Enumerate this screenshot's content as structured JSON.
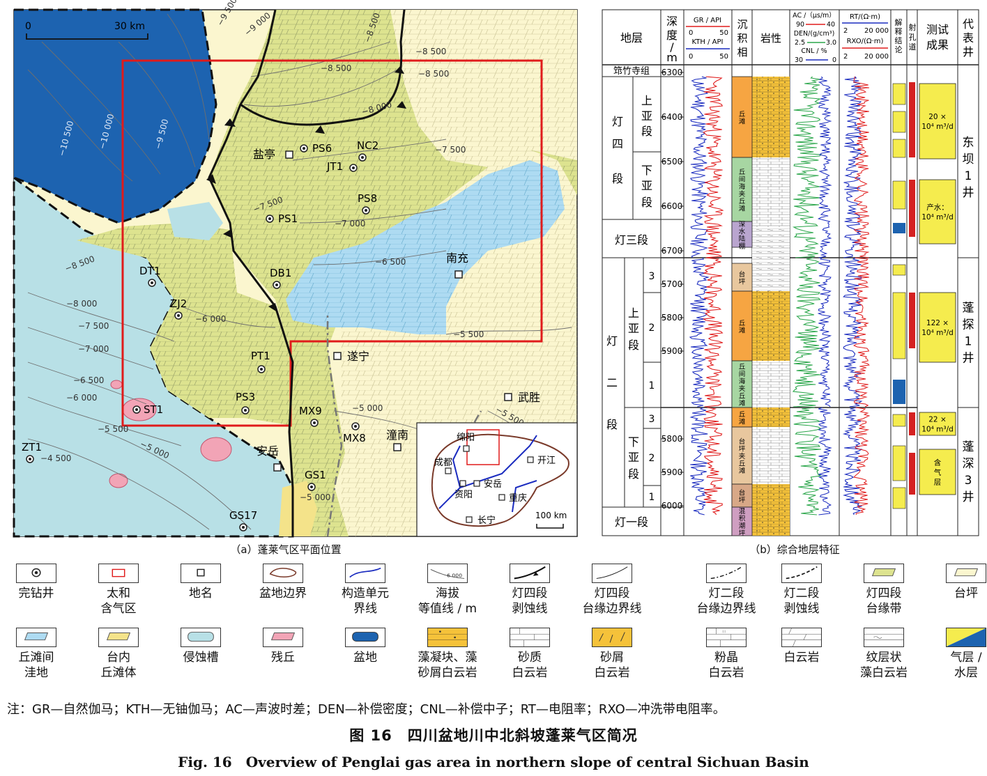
{
  "map": {
    "caption": "（a）蓬莱气区平面位置",
    "scale": {
      "zero": "0",
      "label": "30 km"
    },
    "wells": [
      {
        "name": "PS6"
      },
      {
        "name": "NC2"
      },
      {
        "name": "JT1"
      },
      {
        "name": "PS8"
      },
      {
        "name": "PS1"
      },
      {
        "name": "DT1"
      },
      {
        "name": "DB1"
      },
      {
        "name": "ZJ2"
      },
      {
        "name": "PT1"
      },
      {
        "name": "ST1"
      },
      {
        "name": "PS3"
      },
      {
        "name": "MX9"
      },
      {
        "name": "MX8"
      },
      {
        "name": "ZT1"
      },
      {
        "name": "GS1"
      },
      {
        "name": "GS17"
      }
    ],
    "places": [
      {
        "name": "盐亭"
      },
      {
        "name": "南充"
      },
      {
        "name": "遂宁"
      },
      {
        "name": "武胜"
      },
      {
        "name": "潼南"
      },
      {
        "name": "安岳"
      }
    ],
    "contours": [
      "−9 500",
      "−9 000",
      "−8 500",
      "−8 500",
      "−8 500",
      "−8 000",
      "−7 500",
      "−10 500",
      "−10 000",
      "−9 500",
      "−7 500",
      "−7 000",
      "−6 500",
      "−5 500",
      "−8 500",
      "−8 000",
      "−7 500",
      "−7 000",
      "−6 500",
      "−6 000",
      "−5 500",
      "−5 000",
      "−4 500",
      "−5 000",
      "−5 500",
      "−6 000",
      "−5 000",
      "−8 500"
    ],
    "inset": {
      "places": [
        {
          "name": "绵阳"
        },
        {
          "name": "成都"
        },
        {
          "name": "开江"
        },
        {
          "name": "资阳"
        },
        {
          "name": "安岳"
        },
        {
          "name": "重庆"
        },
        {
          "name": "长宁"
        }
      ],
      "scale": "100 km"
    }
  },
  "column": {
    "caption": "（b）综合地层特征",
    "headers": {
      "strata": "地层",
      "depth": [
        "深",
        "度",
        "/",
        "m"
      ],
      "gr_title": "GR / API",
      "gr_range": [
        "0",
        "50"
      ],
      "kth_title": "KTH / API",
      "kth_range": [
        "0",
        "50"
      ],
      "facies": [
        "沉",
        "积",
        "相"
      ],
      "lith": "岩性",
      "ac_title": "AC /（μs/m）",
      "ac_range": [
        "90",
        "40"
      ],
      "den_title": "DEN/(g/cm³)",
      "den_range": [
        "2.5",
        "3.0"
      ],
      "cnl_title": "CNL / %",
      "cnl_range": [
        "30",
        "0"
      ],
      "rt_title": "RT/(Ω·m)",
      "rt_range": [
        "2",
        "20 000"
      ],
      "rxo_title": "RXO/(Ω·m)",
      "rxo_range": [
        "2",
        "20 000"
      ],
      "interp": [
        "解",
        "释",
        "结",
        "论"
      ],
      "perf": [
        "射",
        "孔",
        "道"
      ],
      "test": [
        "测试",
        "成果"
      ],
      "rep": [
        "代",
        "表",
        "井"
      ]
    },
    "units": {
      "qzs": "筇竹寺组",
      "d4": [
        "灯",
        "四",
        "段"
      ],
      "upper": [
        "上",
        "亚",
        "段"
      ],
      "lower": [
        "下",
        "亚",
        "段"
      ],
      "d3": "灯三段",
      "d2": [
        "灯",
        "二",
        "段"
      ],
      "d1": "灯一段",
      "sub3": "3",
      "sub2": "2",
      "sub1": "1"
    },
    "depths_top": [
      "6300",
      "6400",
      "6500",
      "6600",
      "6700"
    ],
    "depths_mid": [
      "5700",
      "5800",
      "5900"
    ],
    "depths_bot": [
      "5800",
      "5900",
      "6000"
    ],
    "facies": [
      {
        "label": [
          "丘",
          "滩"
        ],
        "color": "#f6a542"
      },
      {
        "label": [
          "丘",
          "间",
          "海",
          "夹",
          "丘",
          "滩"
        ],
        "color": "#a7d6a2"
      },
      {
        "label": [
          "深",
          "水",
          "陆",
          "棚"
        ],
        "color": "#b9a5cf"
      },
      {
        "label": [
          "台",
          "坪"
        ],
        "color": "#e8c79e"
      },
      {
        "label": [
          "丘",
          "滩"
        ],
        "color": "#f6a542"
      },
      {
        "label": [
          "丘",
          "间",
          "海",
          "夹",
          "丘",
          "滩"
        ],
        "color": "#a7d6a2"
      },
      {
        "label": [
          "丘",
          "滩"
        ],
        "color": "#f6a542"
      },
      {
        "label": [
          "台",
          "坪",
          "夹",
          "丘",
          "滩"
        ],
        "color": "#e8c79e"
      },
      {
        "label": [
          "台",
          "坪"
        ],
        "color": "#d8a887"
      },
      {
        "label": [
          "混",
          "积",
          "潮",
          "坪"
        ],
        "color": "#cf9ec1"
      }
    ],
    "tests": [
      {
        "lines": [
          "20 ×",
          "10⁴ m³/d"
        ]
      },
      {
        "lines": [
          "产水：",
          "10⁴ m³/d"
        ]
      },
      {
        "lines": [
          "122 ×",
          "10⁴ m³/d"
        ]
      },
      {
        "lines": [
          "22 ×",
          "10⁴ m³/d"
        ]
      },
      {
        "lines": [
          "含",
          "气",
          "层"
        ]
      }
    ],
    "rep_wells": [
      {
        "chars": [
          "东",
          "坝",
          "1",
          "井"
        ]
      },
      {
        "chars": [
          "蓬",
          "探",
          "1",
          "井"
        ]
      },
      {
        "chars": [
          "蓬",
          "深",
          "3",
          "井"
        ]
      }
    ]
  },
  "legend": [
    {
      "label": [
        "完钻井"
      ],
      "icon": "well"
    },
    {
      "label": [
        "太和",
        "含气区"
      ],
      "icon": "red-rect"
    },
    {
      "label": [
        "地名"
      ],
      "icon": "square"
    },
    {
      "label": [
        "盆地边界"
      ],
      "icon": "basin-boundary"
    },
    {
      "label": [
        "构造单元",
        "界线"
      ],
      "icon": "blue-line"
    },
    {
      "label": [
        "海拔",
        "等值线 / m"
      ],
      "icon": "contour",
      "sample": "6 000"
    },
    {
      "label": [
        "灯四段",
        "剥蚀线"
      ],
      "icon": "thick-curve"
    },
    {
      "label": [
        "灯四段",
        "台缘边界线"
      ],
      "icon": "thin-curve"
    },
    {
      "label": [
        "灯二段",
        "台缘边界线"
      ],
      "icon": "dot-dash-curve"
    },
    {
      "label": [
        "灯二段",
        "剥蚀线"
      ],
      "icon": "dash-curve"
    },
    {
      "label": [
        "灯四段",
        "台缘带"
      ],
      "icon": "rim-belt"
    },
    {
      "label": [
        "台坪"
      ],
      "icon": "platform"
    },
    {
      "label": [
        "丘滩间",
        "洼地"
      ],
      "icon": "depression"
    },
    {
      "label": [
        "台内",
        "丘滩体"
      ],
      "icon": "mound"
    },
    {
      "label": [
        "侵蚀槽"
      ],
      "icon": "trough"
    },
    {
      "label": [
        "残丘"
      ],
      "icon": "residual"
    },
    {
      "label": [
        "盆地"
      ],
      "icon": "basin"
    },
    {
      "label": [
        "藻凝块、藻",
        "砂屑白云岩"
      ],
      "icon": "algal"
    },
    {
      "label": [
        "砂质",
        "白云岩"
      ],
      "icon": "sandy"
    },
    {
      "label": [
        "砂屑",
        "白云岩"
      ],
      "icon": "arenite"
    },
    {
      "label": [
        "粉晶",
        "白云岩"
      ],
      "icon": "silt"
    },
    {
      "label": [
        "白云岩"
      ],
      "icon": "dolomite"
    },
    {
      "label": [
        "纹层状",
        "藻白云岩"
      ],
      "icon": "laminated"
    },
    {
      "label": [
        "气层 /",
        "水层"
      ],
      "icon": "gas-water"
    }
  ],
  "colors": {
    "rim_belt": "#dde38f",
    "platform": "#fbf6cf",
    "depression": "#aedbf2",
    "trough": "#b8e0e6",
    "residual": "#f2a4b6",
    "basin": "#1d63b0",
    "mound": "#f4e38a",
    "gas": "#f5ec4e",
    "perf": "#d52121"
  },
  "note": "注：GR—自然伽马；KTH—无铀伽马；AC—声波时差；DEN—补偿密度；CNL—补偿中子；RT—电阻率；RXO—冲洗带电阻率。",
  "figure": {
    "title_cn": "图 16　四川盆地川中北斜坡蓬莱气区简况",
    "title_en": "Fig. 16　Overview of Penglai gas area in northern slope of central Sichuan Basin"
  }
}
